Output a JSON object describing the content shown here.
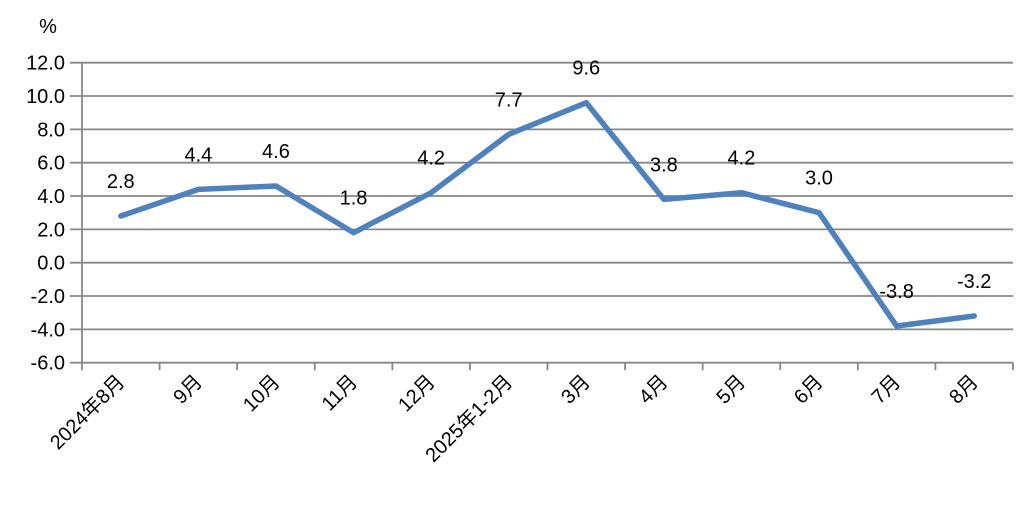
{
  "chart_data": {
    "type": "line",
    "title": "",
    "unit_label": "%",
    "xlabel": "",
    "ylabel": "%",
    "categories": [
      "2024年8月",
      "9月",
      "10月",
      "11月",
      "12月",
      "2025年1-2月",
      "3月",
      "4月",
      "5月",
      "6月",
      "7月",
      "8月"
    ],
    "values": [
      2.8,
      4.4,
      4.6,
      1.8,
      4.2,
      7.7,
      9.6,
      3.8,
      4.2,
      3.0,
      -3.8,
      -3.2
    ],
    "data_labels": [
      "2.8",
      "4.4",
      "4.6",
      "1.8",
      "4.2",
      "7.7",
      "9.6",
      "3.8",
      "4.2",
      "3.0",
      "-3.8",
      "-3.2"
    ],
    "y_ticks": [
      12,
      10,
      8,
      6,
      4,
      2,
      0,
      -2,
      -4,
      -6
    ],
    "y_tick_labels": [
      "12.0",
      "10.0",
      "8.0",
      "6.0",
      "4.0",
      "2.0",
      "0.0",
      "-2.0",
      "-4.0",
      "-6.0"
    ],
    "ylim": [
      -6,
      12
    ],
    "grid": true,
    "legend": "none",
    "x_label_rotation_deg": -45,
    "colors": {
      "line": "#4F81BD",
      "grid": "#878787",
      "axis": "#878787",
      "text": "#000000",
      "background": "#FFFFFF"
    }
  }
}
